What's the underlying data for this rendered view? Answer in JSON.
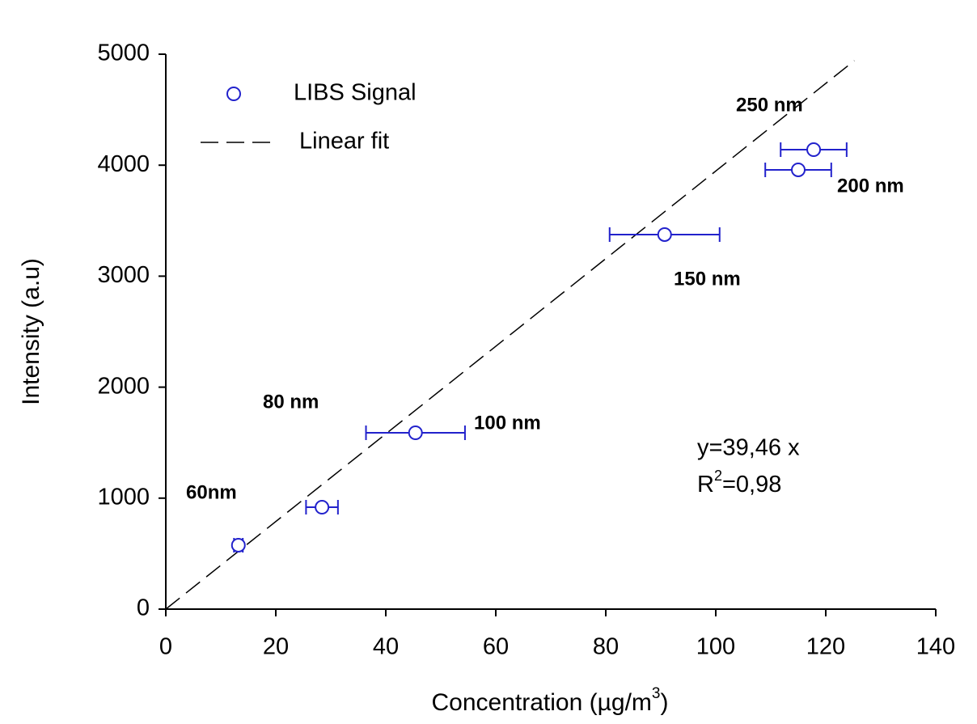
{
  "chart_data": {
    "type": "scatter",
    "xlabel": [
      "Concentration (µg/m",
      "3",
      ")"
    ],
    "ylabel": "Intensity (a.u)",
    "xlim": [
      0,
      140
    ],
    "ylim": [
      0,
      5000
    ],
    "xticks": [
      0,
      20,
      40,
      60,
      80,
      100,
      120,
      140
    ],
    "yticks": [
      0,
      1000,
      2000,
      3000,
      4000,
      5000
    ],
    "series": [
      {
        "name": "LIBS Signal",
        "color": "#2222cc",
        "x": [
          13.2,
          28.4,
          45.4,
          90.7,
          115,
          117.8
        ],
        "values": [
          576,
          918,
          1589,
          3375,
          3958,
          4140
        ],
        "x_err": [
          0.8,
          2.9,
          9,
          10,
          6,
          6
        ]
      },
      {
        "name": "Linear fit",
        "color": "#000000",
        "x": [
          0,
          125.2
        ],
        "values": [
          0,
          4942
        ]
      }
    ],
    "annotations": [
      "60nm",
      "80 nm",
      "100 nm",
      "150 nm",
      "200 nm",
      "250 nm"
    ],
    "equation": "y=39,46 x",
    "r2": [
      "R",
      "2",
      "=0,98"
    ]
  }
}
